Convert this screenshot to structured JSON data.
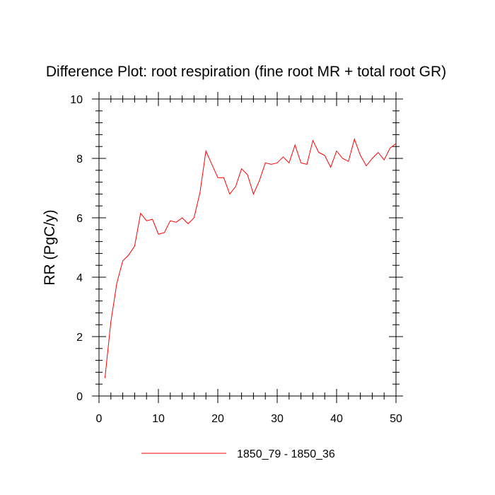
{
  "chart_data": {
    "type": "line",
    "title": "Difference Plot: root respiration (fine root MR + total root GR)",
    "xlabel": "",
    "ylabel": "RR  (PgC/y)",
    "xlim": [
      0,
      50
    ],
    "ylim": [
      0,
      10
    ],
    "x_ticks": [
      0,
      10,
      20,
      30,
      40,
      50
    ],
    "y_ticks": [
      0,
      2,
      4,
      6,
      8,
      10
    ],
    "legend_position": "bottom-center",
    "series": [
      {
        "name": "1850_79 - 1850_36",
        "color": "#ff0000",
        "x": [
          1,
          2,
          3,
          4,
          5,
          6,
          7,
          8,
          9,
          10,
          11,
          12,
          13,
          14,
          15,
          16,
          17,
          18,
          19,
          20,
          21,
          22,
          23,
          24,
          25,
          26,
          27,
          28,
          29,
          30,
          31,
          32,
          33,
          34,
          35,
          36,
          37,
          38,
          39,
          40,
          41,
          42,
          43,
          44,
          45,
          46,
          47,
          48,
          49,
          50
        ],
        "values": [
          0.6,
          2.5,
          3.8,
          4.55,
          4.75,
          5.05,
          6.15,
          5.9,
          5.95,
          5.45,
          5.5,
          5.9,
          5.85,
          6.0,
          5.8,
          6.0,
          6.85,
          8.25,
          7.8,
          7.35,
          7.35,
          6.8,
          7.05,
          7.65,
          7.45,
          6.8,
          7.25,
          7.85,
          7.8,
          7.85,
          8.05,
          7.85,
          8.45,
          7.85,
          7.8,
          8.6,
          8.2,
          8.1,
          7.7,
          8.25,
          8.0,
          7.9,
          8.65,
          8.1,
          7.75,
          8.0,
          8.2,
          7.95,
          8.35,
          8.5
        ]
      }
    ]
  }
}
